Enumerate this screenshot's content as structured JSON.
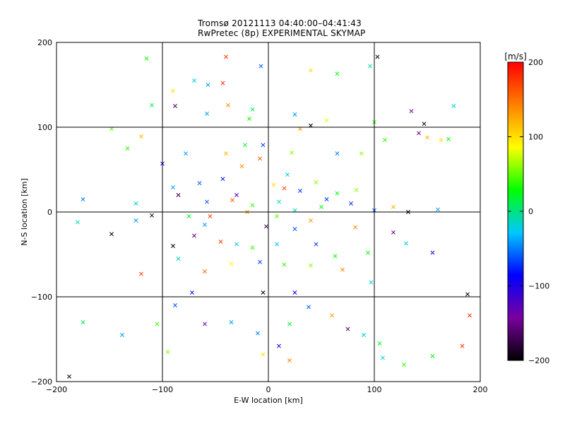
{
  "chart_data": {
    "type": "scatter",
    "title": "Tromsø 20121113 04:40:00–04:41:43",
    "subtitle": "RwPretec (8p) EXPERIMENTAL SKYMAP",
    "xlabel": "E-W location [km]",
    "ylabel": "N-S location [km]",
    "xlim": [
      -200,
      200
    ],
    "ylim": [
      -200,
      200
    ],
    "xticks": [
      -200,
      -100,
      0,
      100,
      200
    ],
    "yticks": [
      -200,
      -100,
      0,
      100,
      200
    ],
    "x_tick_labels": [
      "−200",
      "−100",
      "0",
      "100",
      "200"
    ],
    "y_tick_labels": [
      "−200",
      "−100",
      "0",
      "100",
      "200"
    ],
    "grid": true,
    "marker_types": [
      "dot",
      "cross"
    ],
    "colorbar": {
      "label": "[m/s]",
      "range": [
        -200,
        200
      ],
      "ticks": [
        200,
        100,
        0,
        -100,
        -200
      ],
      "tick_labels": [
        "200",
        "100",
        "0",
        "−100",
        "−200"
      ],
      "colormap": [
        "#000000",
        "#7a00a0",
        "#0000ff",
        "#00c8ff",
        "#00ff00",
        "#ffff00",
        "#ff8000",
        "#ff0000"
      ]
    },
    "cross_points": [
      [
        103,
        183,
        -200
      ],
      [
        -115,
        181,
        30
      ],
      [
        -40,
        183,
        180
      ],
      [
        -70,
        155,
        -20
      ],
      [
        -7,
        172,
        -60
      ],
      [
        -43,
        152,
        180
      ],
      [
        40,
        167,
        100
      ],
      [
        65,
        163,
        30
      ],
      [
        96,
        172,
        -10
      ],
      [
        -110,
        126,
        10
      ],
      [
        -57,
        150,
        -40
      ],
      [
        -90,
        143,
        100
      ],
      [
        -88,
        125,
        -160
      ],
      [
        -38,
        126,
        140
      ],
      [
        -15,
        121,
        10
      ],
      [
        -58,
        116,
        -40
      ],
      [
        25,
        115,
        -40
      ],
      [
        30,
        98,
        130
      ],
      [
        -148,
        98,
        50
      ],
      [
        -120,
        89,
        120
      ],
      [
        -18,
        110,
        30
      ],
      [
        40,
        102,
        -200
      ],
      [
        55,
        108,
        80
      ],
      [
        100,
        106,
        40
      ],
      [
        110,
        85,
        40
      ],
      [
        135,
        119,
        -140
      ],
      [
        142,
        93,
        -150
      ],
      [
        150,
        88,
        120
      ],
      [
        147,
        104,
        -200
      ],
      [
        163,
        85,
        100
      ],
      [
        170,
        86,
        30
      ],
      [
        175,
        125,
        -20
      ],
      [
        -133,
        75,
        40
      ],
      [
        -100,
        57,
        -110
      ],
      [
        -78,
        69,
        -40
      ],
      [
        -40,
        69,
        120
      ],
      [
        -22,
        79,
        20
      ],
      [
        -5,
        79,
        -70
      ],
      [
        22,
        70,
        60
      ],
      [
        65,
        69,
        -50
      ],
      [
        88,
        69,
        60
      ],
      [
        -90,
        29,
        -40
      ],
      [
        -65,
        34,
        -60
      ],
      [
        -43,
        39,
        -80
      ],
      [
        -25,
        54,
        140
      ],
      [
        -8,
        63,
        160
      ],
      [
        5,
        32,
        100
      ],
      [
        18,
        44,
        -20
      ],
      [
        30,
        25,
        -70
      ],
      [
        45,
        35,
        60
      ],
      [
        65,
        22,
        30
      ],
      [
        83,
        26,
        60
      ],
      [
        -125,
        10,
        -20
      ],
      [
        -85,
        20,
        -170
      ],
      [
        -58,
        12,
        -60
      ],
      [
        -34,
        14,
        160
      ],
      [
        -15,
        8,
        40
      ],
      [
        10,
        12,
        -10
      ],
      [
        25,
        2,
        -10
      ],
      [
        50,
        6,
        30
      ],
      [
        78,
        10,
        -70
      ],
      [
        100,
        2,
        -60
      ],
      [
        118,
        6,
        120
      ],
      [
        132,
        0,
        -200
      ],
      [
        160,
        3,
        -40
      ],
      [
        -148,
        -26,
        -200
      ],
      [
        -125,
        -10,
        -40
      ],
      [
        -110,
        -4,
        -190
      ],
      [
        -90,
        -40,
        -200
      ],
      [
        -70,
        -28,
        -160
      ],
      [
        -45,
        -35,
        170
      ],
      [
        -30,
        -38,
        -30
      ],
      [
        -15,
        -42,
        40
      ],
      [
        8,
        -38,
        -30
      ],
      [
        25,
        -20,
        -60
      ],
      [
        45,
        -38,
        -70
      ],
      [
        63,
        -52,
        30
      ],
      [
        82,
        -18,
        140
      ],
      [
        94,
        -48,
        30
      ],
      [
        118,
        -24,
        -150
      ],
      [
        130,
        -37,
        -20
      ],
      [
        155,
        -48,
        -100
      ],
      [
        -120,
        -73,
        170
      ],
      [
        -85,
        -55,
        -10
      ],
      [
        -60,
        -70,
        150
      ],
      [
        -35,
        -61,
        90
      ],
      [
        -8,
        -59,
        -70
      ],
      [
        15,
        -62,
        40
      ],
      [
        40,
        -63,
        60
      ],
      [
        70,
        -68,
        140
      ],
      [
        97,
        -83,
        -20
      ],
      [
        -105,
        -132,
        40
      ],
      [
        -88,
        -110,
        -60
      ],
      [
        -60,
        -132,
        -140
      ],
      [
        -35,
        -130,
        -40
      ],
      [
        -10,
        -143,
        -50
      ],
      [
        10,
        -158,
        -100
      ],
      [
        20,
        -132,
        20
      ],
      [
        38,
        -112,
        -60
      ],
      [
        60,
        -122,
        130
      ],
      [
        75,
        -138,
        -160
      ],
      [
        90,
        -145,
        -20
      ],
      [
        105,
        -155,
        20
      ],
      [
        -138,
        -145,
        -40
      ],
      [
        -95,
        -165,
        60
      ],
      [
        -5,
        -95,
        -200
      ],
      [
        -72,
        -95,
        -80
      ],
      [
        25,
        -95,
        -90
      ],
      [
        108,
        -172,
        -20
      ],
      [
        128,
        -180,
        40
      ],
      [
        155,
        -170,
        30
      ],
      [
        183,
        -158,
        180
      ],
      [
        190,
        -122,
        180
      ],
      [
        188,
        -97,
        -200
      ],
      [
        -188,
        -194,
        -200
      ],
      [
        -175,
        15,
        -50
      ],
      [
        -180,
        -12,
        -10
      ],
      [
        -175,
        -130,
        10
      ],
      [
        -5,
        -168,
        100
      ],
      [
        20,
        -175,
        140
      ],
      [
        -2,
        -17,
        -170
      ],
      [
        -20,
        0,
        130
      ],
      [
        -55,
        -5,
        170
      ],
      [
        8,
        -5,
        50
      ],
      [
        -30,
        20,
        -130
      ],
      [
        15,
        28,
        170
      ],
      [
        40,
        -10,
        130
      ],
      [
        -60,
        -15,
        -40
      ],
      [
        -75,
        -5,
        20
      ],
      [
        55,
        15,
        -70
      ]
    ]
  }
}
